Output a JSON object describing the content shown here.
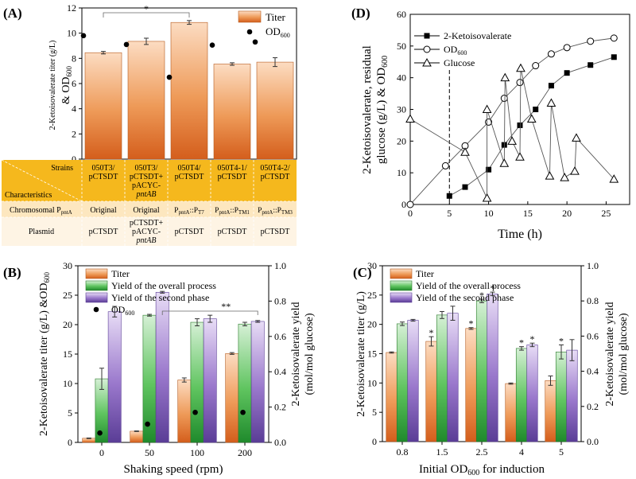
{
  "chart_data": [
    {
      "panel": "(A)",
      "type": "bar",
      "categories": [
        "050T3/pCTSDT",
        "050T3/pCTSDT+pACYC-pntAB",
        "050T4/pCTSDT",
        "050T4-1/pCTSDT",
        "050T4-2/pCTSDT"
      ],
      "series": [
        {
          "name": "Titer",
          "values": [
            8.45,
            9.35,
            10.85,
            7.55,
            7.7
          ],
          "errors": [
            0.1,
            0.25,
            0.15,
            0.1,
            0.35
          ],
          "color": "#d96520"
        },
        {
          "name": "OD600",
          "kind": "point",
          "values": [
            9.8,
            9.1,
            6.5,
            9.05,
            9.3
          ]
        }
      ],
      "ylabel": "2-Ketoisovalerate titer (g/L) & OD600",
      "ylim": [
        0,
        12
      ],
      "yticks": [
        0,
        2,
        4,
        6,
        8,
        10,
        12
      ],
      "legend": [
        "Titer",
        "OD600"
      ],
      "annotations": [
        {
          "text": "*",
          "from": 0,
          "to": 2
        }
      ],
      "table": {
        "header_top": "Strains",
        "header_bottom": "Characteristics",
        "strains": [
          [
            "050T3/",
            "pCTSDT"
          ],
          [
            "050T3/",
            "pCTSDT+",
            "pACYC-",
            "pntAB"
          ],
          [
            "050T4/",
            "pCTSDT"
          ],
          [
            "050T4-1/",
            "pCTSDT"
          ],
          [
            "050T4-2/",
            "pCTSDT"
          ]
        ],
        "row1_label": [
          "Chromosomal P",
          "pntA"
        ],
        "row1": [
          [
            "Original",
            ""
          ],
          [
            "Original",
            ""
          ],
          [
            "PpntA::PT7",
            "T7"
          ],
          [
            "PpntA::PTM1",
            "TM1"
          ],
          [
            "PpntA::PTM3",
            "TM3"
          ]
        ],
        "row2_label": "Plasmid",
        "row2": [
          [
            "pCTSDT"
          ],
          [
            "pCTSDT+",
            "pACYC-",
            "pntAB"
          ],
          [
            "pCTSDT"
          ],
          [
            "pCTSDT"
          ],
          [
            "pCTSDT"
          ]
        ]
      }
    },
    {
      "panel": "(D)",
      "type": "line",
      "xlabel": "Time (h)",
      "ylabel": "2-Ketoisovalerate, residual glucose (g/L) & OD600",
      "xlim": [
        0,
        28
      ],
      "ylim": [
        0,
        60
      ],
      "xticks": [
        0,
        5,
        10,
        15,
        20,
        25
      ],
      "yticks": [
        0,
        10,
        20,
        30,
        40,
        50,
        60
      ],
      "vline_x": 5,
      "series": [
        {
          "name": "2-Ketoisovalerate",
          "marker": "filled-square",
          "x": [
            5,
            7,
            10,
            12,
            14,
            16,
            18,
            20,
            23,
            26
          ],
          "y": [
            2.7,
            5.5,
            11,
            18.8,
            25,
            30,
            37.5,
            41.5,
            44,
            46.5
          ]
        },
        {
          "name": "OD600",
          "marker": "open-circle",
          "x": [
            0,
            4.5,
            7,
            10,
            12,
            14,
            16,
            18,
            20,
            23,
            26
          ],
          "y": [
            0,
            12.2,
            18.5,
            26,
            33.5,
            38.5,
            43.8,
            47.5,
            49.5,
            51.5,
            52.5
          ]
        },
        {
          "name": "Glucose",
          "marker": "open-triangle",
          "x": [
            0,
            7,
            9.8,
            9.8,
            12,
            12.1,
            13,
            14,
            14.1,
            15.5,
            17.8,
            18,
            19.7,
            21,
            21.2,
            26
          ],
          "y": [
            27,
            16.5,
            2,
            30,
            13,
            40,
            20,
            15,
            43,
            27,
            9,
            32,
            8.5,
            10.5,
            21,
            8
          ]
        }
      ],
      "legend": [
        "2-Ketoisovalerate",
        "OD600",
        "Glucose"
      ]
    },
    {
      "panel": "(B)",
      "type": "bar",
      "categories": [
        "0",
        "50",
        "100",
        "200"
      ],
      "xlabel": "Shaking speed (rpm)",
      "ylabel": "2-Ketoisovalerate titer (g/L) &OD600",
      "y2label": "2-Ketoisovalerate yield (mol/mol glucose)",
      "ylim": [
        0,
        30
      ],
      "y2lim": [
        0,
        1.0
      ],
      "yticks": [
        0,
        5,
        10,
        15,
        20,
        25,
        30
      ],
      "y2ticks": [
        0.0,
        0.2,
        0.4,
        0.6,
        0.8,
        1.0
      ],
      "series": [
        {
          "name": "Titer",
          "axis": "left",
          "values": [
            0.7,
            1.9,
            10.6,
            15.1
          ],
          "errors": [
            0.05,
            0.05,
            0.35,
            0.15
          ],
          "color": "#d96520"
        },
        {
          "name": "Yield of the overall process",
          "axis": "right",
          "values": [
            0.36,
            0.72,
            0.68,
            0.67
          ],
          "errors": [
            0.06,
            0.005,
            0.02,
            0.01
          ],
          "color": "#38a838"
        },
        {
          "name": "Yield of the second phase",
          "axis": "right",
          "values": [
            0.74,
            0.85,
            0.7,
            0.685
          ],
          "errors": [
            0.03,
            0.005,
            0.02,
            0.005
          ],
          "color": "#7a58b0"
        },
        {
          "name": "OD600",
          "kind": "point",
          "axis": "left",
          "values": [
            1.6,
            3.1,
            5.1,
            5.1
          ]
        }
      ],
      "legend": [
        "Titer",
        "Yield of the overall process",
        "Yield of the second phase",
        "OD600"
      ],
      "annotations": [
        {
          "text": "**",
          "from": 1,
          "to": 3
        }
      ]
    },
    {
      "panel": "(C)",
      "type": "bar",
      "categories": [
        "0.8",
        "1.5",
        "2.5",
        "4",
        "5"
      ],
      "xlabel": "Initial OD600 for induction",
      "ylabel": "2-Ketoisovalerate titer (g/L)",
      "y2label": "2-Ketoisovalerate yield (mol/mol glucose)",
      "ylim": [
        0,
        30
      ],
      "y2lim": [
        0,
        1.0
      ],
      "yticks": [
        0,
        5,
        10,
        15,
        20,
        25,
        30
      ],
      "y2ticks": [
        0.0,
        0.2,
        0.4,
        0.6,
        0.8,
        1.0
      ],
      "series": [
        {
          "name": "Titer",
          "axis": "left",
          "values": [
            15.2,
            17.1,
            19.3,
            9.9,
            10.4
          ],
          "errors": [
            0.1,
            0.8,
            0.15,
            0.1,
            0.8
          ],
          "color": "#d96520"
        },
        {
          "name": "Yield of the overall process",
          "axis": "right",
          "values": [
            0.67,
            0.72,
            0.8,
            0.53,
            0.51
          ],
          "errors": [
            0.01,
            0.02,
            0.01,
            0.01,
            0.04
          ],
          "color": "#38a838"
        },
        {
          "name": "Yield of the second phase",
          "axis": "right",
          "values": [
            0.69,
            0.73,
            0.84,
            0.55,
            0.52
          ],
          "errors": [
            0.005,
            0.04,
            0.01,
            0.01,
            0.06
          ],
          "color": "#7a58b0"
        }
      ],
      "stars": [
        {
          "series": 0,
          "index": 1,
          "text": "*"
        },
        {
          "series": 0,
          "index": 2,
          "text": "*"
        },
        {
          "series": 1,
          "index": 2,
          "text": "*"
        },
        {
          "series": 2,
          "index": 2,
          "text": "*"
        },
        {
          "series": 1,
          "index": 3,
          "text": "*"
        },
        {
          "series": 2,
          "index": 3,
          "text": "*"
        },
        {
          "series": 1,
          "index": 4,
          "text": "*"
        }
      ],
      "legend": [
        "Titer",
        "Yield of the overall process",
        "Yield of the second phase"
      ]
    }
  ]
}
